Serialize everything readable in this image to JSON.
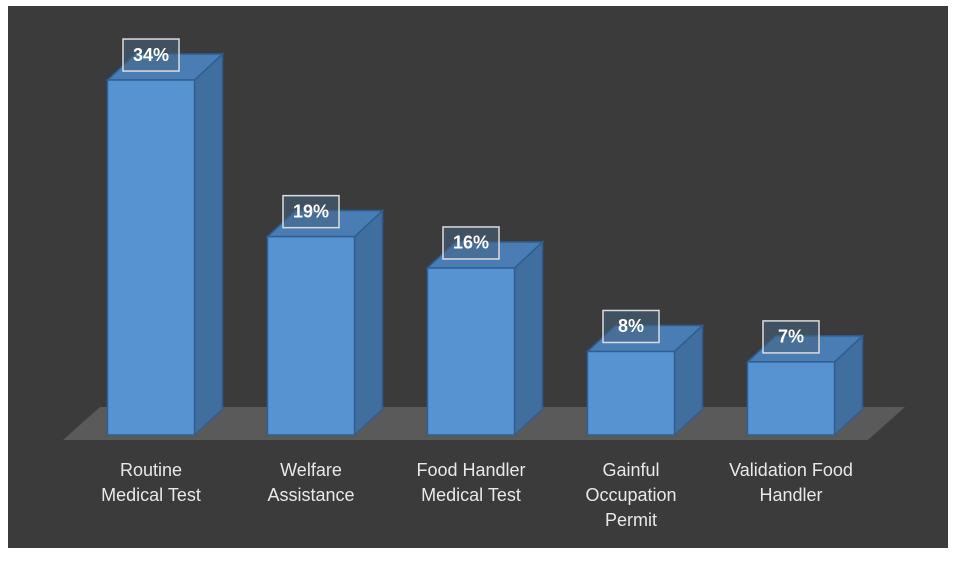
{
  "chart_data": {
    "type": "bar3d",
    "categories": [
      "Routine Medical Test",
      "Welfare Assistance",
      "Food Handler Medical Test",
      "Gainful Occupation Permit",
      "Validation Food Handler"
    ],
    "values": [
      34,
      19,
      16,
      8,
      7
    ],
    "value_labels": [
      "34%",
      "19%",
      "16%",
      "8%",
      "7%"
    ],
    "color": "#5893d1"
  }
}
